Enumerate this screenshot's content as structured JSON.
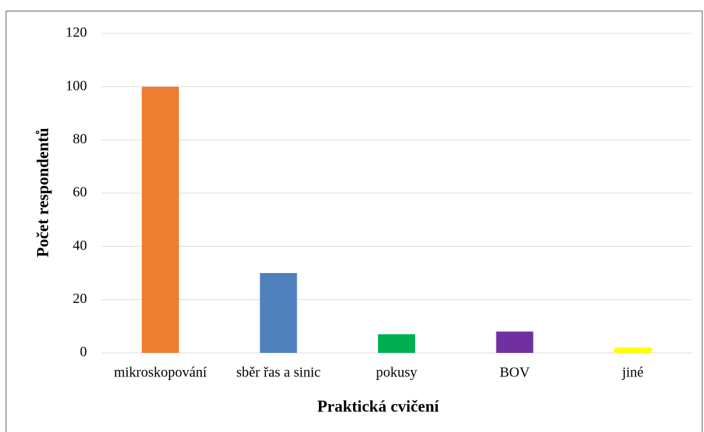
{
  "chart_data": {
    "type": "bar",
    "categories": [
      "mikroskopování",
      "sběr řas a sinic",
      "pokusy",
      "BOV",
      "jiné"
    ],
    "values": [
      100,
      30,
      7,
      8,
      2
    ],
    "colors": [
      "#ED7D31",
      "#4F81BD",
      "#00B050",
      "#7030A0",
      "#FFFF00"
    ],
    "xlabel": "Praktická cvičení",
    "ylabel": "Počet respondentů",
    "ylim": [
      0,
      120
    ],
    "yticks": [
      0,
      20,
      40,
      60,
      80,
      100,
      120
    ],
    "grid": true
  }
}
